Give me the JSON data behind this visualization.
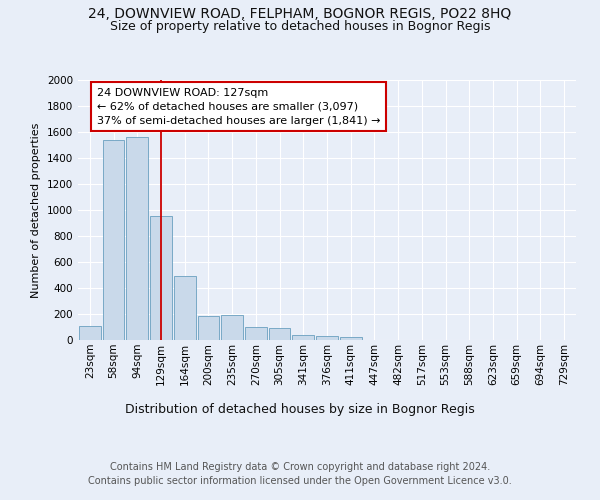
{
  "title": "24, DOWNVIEW ROAD, FELPHAM, BOGNOR REGIS, PO22 8HQ",
  "subtitle": "Size of property relative to detached houses in Bognor Regis",
  "xlabel": "Distribution of detached houses by size in Bognor Regis",
  "ylabel": "Number of detached properties",
  "bin_labels": [
    "23sqm",
    "58sqm",
    "94sqm",
    "129sqm",
    "164sqm",
    "200sqm",
    "235sqm",
    "270sqm",
    "305sqm",
    "341sqm",
    "376sqm",
    "411sqm",
    "447sqm",
    "482sqm",
    "517sqm",
    "553sqm",
    "588sqm",
    "623sqm",
    "659sqm",
    "694sqm",
    "729sqm"
  ],
  "bar_values": [
    110,
    1540,
    1565,
    950,
    490,
    185,
    190,
    100,
    95,
    40,
    30,
    20,
    0,
    0,
    0,
    0,
    0,
    0,
    0,
    0,
    0
  ],
  "bar_color": "#c9d9ea",
  "bar_edge_color": "#6a9fc0",
  "property_bin_index": 3,
  "vline_color": "#cc0000",
  "annotation_text": "24 DOWNVIEW ROAD: 127sqm\n← 62% of detached houses are smaller (3,097)\n37% of semi-detached houses are larger (1,841) →",
  "annotation_box_color": "#ffffff",
  "annotation_box_edge": "#cc0000",
  "ylim": [
    0,
    2000
  ],
  "yticks": [
    0,
    200,
    400,
    600,
    800,
    1000,
    1200,
    1400,
    1600,
    1800,
    2000
  ],
  "footer_line1": "Contains HM Land Registry data © Crown copyright and database right 2024.",
  "footer_line2": "Contains public sector information licensed under the Open Government Licence v3.0.",
  "background_color": "#e8eef8",
  "plot_background": "#e8eef8",
  "grid_color": "#ffffff",
  "title_fontsize": 10,
  "subtitle_fontsize": 9,
  "xlabel_fontsize": 9,
  "ylabel_fontsize": 8,
  "tick_fontsize": 7.5,
  "footer_fontsize": 7
}
